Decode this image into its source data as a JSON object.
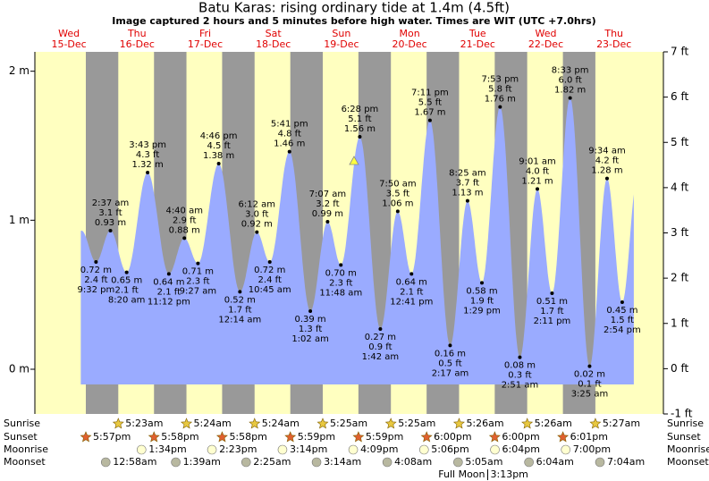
{
  "chart_data": {
    "type": "area",
    "title": "Batu Karas: rising  ordinary tide at 1.4m (4.5ft)",
    "subtitle": "Image captured 2 hours and 5 minutes before high water. Times are WIT (UTC +7.0hrs)",
    "ylim": [
      -0.3,
      2.13
    ],
    "yticks": [
      {
        "value": 0,
        "label": "0 m"
      },
      {
        "value": 1,
        "label": "1 m"
      },
      {
        "value": 2,
        "label": "2 m"
      }
    ],
    "y2lim": [
      -1,
      7
    ],
    "y2ticks": [
      {
        "value": -1,
        "label": "-1 ft"
      },
      {
        "value": 0,
        "label": "0 ft"
      },
      {
        "value": 1,
        "label": "1 ft"
      },
      {
        "value": 2,
        "label": "2 ft"
      },
      {
        "value": 3,
        "label": "3 ft"
      },
      {
        "value": 4,
        "label": "4 ft"
      },
      {
        "value": 5,
        "label": "5 ft"
      },
      {
        "value": 6,
        "label": "6 ft"
      },
      {
        "value": 7,
        "label": "7 ft"
      }
    ],
    "color": "#9aabff",
    "rows": {
      "sunrise": "Sunrise",
      "sunset": "Sunset",
      "moonrise": "Moonrise",
      "moonset": "Moonset"
    },
    "days": [
      {
        "weekday": "Wed",
        "date": "15-Dec",
        "sunset": "5:57pm",
        "tides": [
          {
            "time": "9:32 pm",
            "height": 0.72,
            "height_label": "0.72 m",
            "feet": 2.4,
            "feet_label": "2.4 ft"
          }
        ]
      },
      {
        "weekday": "Thu",
        "date": "16-Dec",
        "sunrise": "5:23am",
        "sunset": "5:58pm",
        "moonrise": "1:34pm",
        "moonset": "12:58am",
        "tides": [
          {
            "time": "2:37 am",
            "height": 0.93,
            "height_label": "0.93 m",
            "feet": 3.1,
            "feet_label": "3.1 ft"
          },
          {
            "time": "8:20 am",
            "height": 0.65,
            "height_label": "0.65 m",
            "feet": 2.1,
            "feet_label": "2.1 ft"
          },
          {
            "time": "3:43 pm",
            "height": 1.32,
            "height_label": "1.32 m",
            "feet": 4.3,
            "feet_label": "4.3 ft"
          },
          {
            "time": "11:12 pm",
            "height": 0.64,
            "height_label": "0.64 m",
            "feet": 2.1,
            "feet_label": "2.1 ft"
          }
        ]
      },
      {
        "weekday": "Fri",
        "date": "17-Dec",
        "sunrise": "5:24am",
        "sunset": "5:58pm",
        "moonrise": "2:23pm",
        "moonset": "1:39am",
        "tides": [
          {
            "time": "4:40 am",
            "height": 0.88,
            "height_label": "0.88 m",
            "feet": 2.9,
            "feet_label": "2.9 ft"
          },
          {
            "time": "9:27 am",
            "height": 0.71,
            "height_label": "0.71 m",
            "feet": 2.3,
            "feet_label": "2.3 ft"
          },
          {
            "time": "4:46 pm",
            "height": 1.38,
            "height_label": "1.38 m",
            "feet": 4.5,
            "feet_label": "4.5 ft"
          }
        ]
      },
      {
        "weekday": "Sat",
        "date": "18-Dec",
        "sunrise": "5:24am",
        "sunset": "5:59pm",
        "moonrise": "3:14pm",
        "moonset": "2:25am",
        "tides": [
          {
            "time": "12:14 am",
            "height": 0.52,
            "height_label": "0.52 m",
            "feet": 1.7,
            "feet_label": "1.7 ft"
          },
          {
            "time": "6:12 am",
            "height": 0.92,
            "height_label": "0.92 m",
            "feet": 3.0,
            "feet_label": "3.0 ft"
          },
          {
            "time": "10:45 am",
            "height": 0.72,
            "height_label": "0.72 m",
            "feet": 2.4,
            "feet_label": "2.4 ft"
          },
          {
            "time": "5:41 pm",
            "height": 1.46,
            "height_label": "1.46 m",
            "feet": 4.8,
            "feet_label": "4.8 ft"
          }
        ]
      },
      {
        "weekday": "Sun",
        "date": "19-Dec",
        "sunrise": "5:25am",
        "sunset": "5:59pm",
        "moonrise": "4:09pm",
        "moonset": "3:14am",
        "tides": [
          {
            "time": "1:02 am",
            "height": 0.39,
            "height_label": "0.39 m",
            "feet": 1.3,
            "feet_label": "1.3 ft"
          },
          {
            "time": "7:07 am",
            "height": 0.99,
            "height_label": "0.99 m",
            "feet": 3.2,
            "feet_label": "3.2 ft"
          },
          {
            "time": "11:48 am",
            "height": 0.7,
            "height_label": "0.70 m",
            "feet": 2.3,
            "feet_label": "2.3 ft"
          },
          {
            "time": "6:28 pm",
            "height": 1.56,
            "height_label": "1.56 m",
            "feet": 5.1,
            "feet_label": "5.1 ft"
          }
        ]
      },
      {
        "weekday": "Mon",
        "date": "20-Dec",
        "sunrise": "5:25am",
        "sunset": "6:00pm",
        "moonrise": "5:06pm",
        "moonset": "4:08am",
        "tides": [
          {
            "time": "1:42 am",
            "height": 0.27,
            "height_label": "0.27 m",
            "feet": 0.9,
            "feet_label": "0.9 ft"
          },
          {
            "time": "7:50 am",
            "height": 1.06,
            "height_label": "1.06 m",
            "feet": 3.5,
            "feet_label": "3.5 ft"
          },
          {
            "time": "12:41 pm",
            "height": 0.64,
            "height_label": "0.64 m",
            "feet": 2.1,
            "feet_label": "2.1 ft"
          },
          {
            "time": "7:11 pm",
            "height": 1.67,
            "height_label": "1.67 m",
            "feet": 5.5,
            "feet_label": "5.5 ft"
          }
        ]
      },
      {
        "weekday": "Tue",
        "date": "21-Dec",
        "sunrise": "5:26am",
        "sunset": "6:00pm",
        "moonrise": "6:04pm",
        "moonset": "5:05am",
        "moon_phase": {
          "label": "Full Moon",
          "time": "3:13pm"
        },
        "tides": [
          {
            "time": "2:17 am",
            "height": 0.16,
            "height_label": "0.16 m",
            "feet": 0.5,
            "feet_label": "0.5 ft"
          },
          {
            "time": "8:25 am",
            "height": 1.13,
            "height_label": "1.13 m",
            "feet": 3.7,
            "feet_label": "3.7 ft"
          },
          {
            "time": "1:29 pm",
            "height": 0.58,
            "height_label": "0.58 m",
            "feet": 1.9,
            "feet_label": "1.9 ft"
          },
          {
            "time": "7:53 pm",
            "height": 1.76,
            "height_label": "1.76 m",
            "feet": 5.8,
            "feet_label": "5.8 ft"
          }
        ]
      },
      {
        "weekday": "Wed",
        "date": "22-Dec",
        "sunrise": "5:26am",
        "sunset": "6:01pm",
        "moonrise": "7:00pm",
        "moonset": "6:04am",
        "tides": [
          {
            "time": "2:51 am",
            "height": 0.08,
            "height_label": "0.08 m",
            "feet": 0.3,
            "feet_label": "0.3 ft"
          },
          {
            "time": "9:01 am",
            "height": 1.21,
            "height_label": "1.21 m",
            "feet": 4.0,
            "feet_label": "4.0 ft"
          },
          {
            "time": "2:11 pm",
            "height": 0.51,
            "height_label": "0.51 m",
            "feet": 1.7,
            "feet_label": "1.7 ft"
          },
          {
            "time": "8:33 pm",
            "height": 1.82,
            "height_label": "1.82 m",
            "feet": 6.0,
            "feet_label": "6.0 ft"
          }
        ]
      },
      {
        "weekday": "Thu",
        "date": "23-Dec",
        "sunrise": "5:27am",
        "moonset": "7:04am",
        "tides": [
          {
            "time": "3:25 am",
            "height": 0.02,
            "height_label": "0.02 m",
            "feet": 0.1,
            "feet_label": "0.1 ft"
          },
          {
            "time": "9:34 am",
            "height": 1.28,
            "height_label": "1.28 m",
            "feet": 4.2,
            "feet_label": "4.2 ft"
          },
          {
            "time": "2:54 pm",
            "height": 0.45,
            "height_label": "0.45 m",
            "feet": 1.5,
            "feet_label": "1.5 ft"
          }
        ]
      }
    ]
  }
}
